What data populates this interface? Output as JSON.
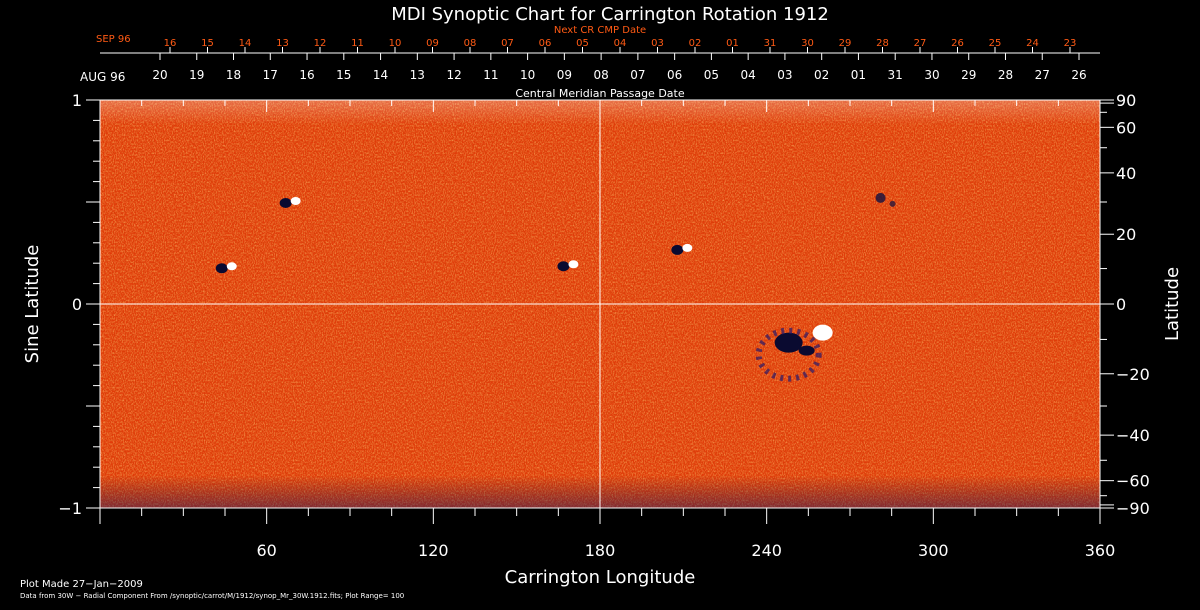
{
  "chart_data": {
    "type": "heatmap",
    "title": "MDI Synoptic Chart for Carrington Rotation 1912",
    "xlabel": "Carrington Longitude",
    "ylabel_left": "Sine Latitude",
    "ylabel_right": "Latitude",
    "xlim": [
      0,
      360
    ],
    "ylim": [
      -1,
      1
    ],
    "x_ticks": [
      60,
      120,
      180,
      240,
      300,
      360
    ],
    "y_ticks_left": [
      "1",
      "0",
      "−1"
    ],
    "y_ticks_right": [
      "90",
      "60",
      "40",
      "20",
      "0",
      "−20",
      "−40",
      "−60",
      "−90"
    ],
    "y_ticks_right_values": [
      90,
      60,
      40,
      20,
      0,
      -20,
      -40,
      -60,
      -90
    ],
    "top_axis_next": {
      "label": "Next CR CMP Date",
      "month": "SEP 96",
      "dates": [
        "16",
        "15",
        "14",
        "13",
        "12",
        "11",
        "10",
        "09",
        "08",
        "07",
        "06",
        "05",
        "04",
        "03",
        "02",
        "01",
        "31",
        "30",
        "29",
        "28",
        "27",
        "26",
        "25",
        "24",
        "23"
      ]
    },
    "top_axis_cmp": {
      "label": "Central Meridian Passage Date",
      "month": "AUG 96",
      "dates": [
        "20",
        "19",
        "18",
        "17",
        "16",
        "15",
        "14",
        "13",
        "12",
        "11",
        "10",
        "09",
        "08",
        "07",
        "06",
        "05",
        "04",
        "03",
        "02",
        "01",
        "31",
        "30",
        "29",
        "28",
        "27",
        "26"
      ]
    },
    "colormap": [
      "#000030",
      "#2a1a7a",
      "#cc2a00",
      "#ff5a10",
      "#ffb030",
      "#ffffff"
    ],
    "active_regions": [
      {
        "lon": 69,
        "sinlat": 0.5,
        "polarity": "mixed"
      },
      {
        "lon": 46,
        "sinlat": 0.18,
        "polarity": "mixed"
      },
      {
        "lon": 169,
        "sinlat": 0.19,
        "polarity": "mixed"
      },
      {
        "lon": 258,
        "sinlat": -0.16,
        "polarity": "mixed"
      },
      {
        "lon": 281,
        "sinlat": 0.52,
        "polarity": "negative"
      },
      {
        "lon": 210,
        "sinlat": 0.27,
        "polarity": "mixed"
      }
    ],
    "grid": "cross at 180 longitude and 0 latitude"
  },
  "footer": {
    "plot_made": "Plot Made 27−Jan−2009",
    "data_from": "Data from 30W − Radial Component From /synoptic/carrot/M/1912/synop_Mr_30W.1912.fits; Plot Range=  100"
  }
}
